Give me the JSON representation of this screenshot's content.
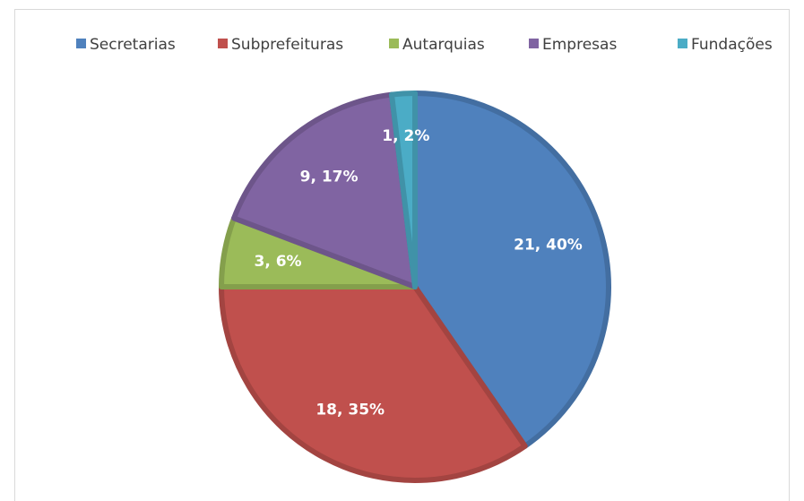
{
  "chart_data": {
    "type": "pie",
    "categories": [
      "Secretarias",
      "Subprefeituras",
      "Autarquias",
      "Empresas",
      "Fundações"
    ],
    "values": [
      21,
      18,
      3,
      9,
      1
    ],
    "value_labels": [
      "21, 40%",
      "18, 35%",
      "3, 6%",
      "9, 17%",
      "1, 2%"
    ],
    "colors": [
      "#4f81bd",
      "#c0504d",
      "#9bbb59",
      "#8064a2",
      "#4bacc6"
    ],
    "legend": "top"
  }
}
